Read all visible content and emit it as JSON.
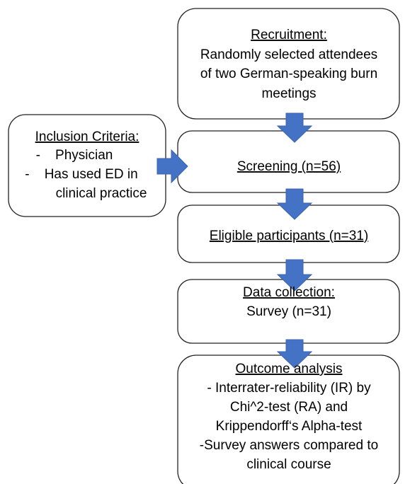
{
  "recruitment": {
    "title": "Recruitment:",
    "lines": [
      "Randomly selected attendees",
      "of two German-speaking burn",
      "meetings"
    ]
  },
  "inclusion": {
    "title": "Inclusion Criteria:",
    "lines": [
      "-    Physician",
      "-    Has used ED in",
      "clinical practice"
    ]
  },
  "screening": {
    "title": "Screening (n=56)"
  },
  "eligible": {
    "title": "Eligible participants (n=31)"
  },
  "data_collection": {
    "title": "Data collection:",
    "lines": [
      "Survey (n=31)"
    ]
  },
  "outcome": {
    "title": "Outcome analysis",
    "lines": [
      "- Interrater-reliability (IR) by",
      "Chi^2-test (RA) and",
      "Krippendorff‘s Alpha-test",
      "-Survey answers compared to",
      "clinical course"
    ]
  }
}
